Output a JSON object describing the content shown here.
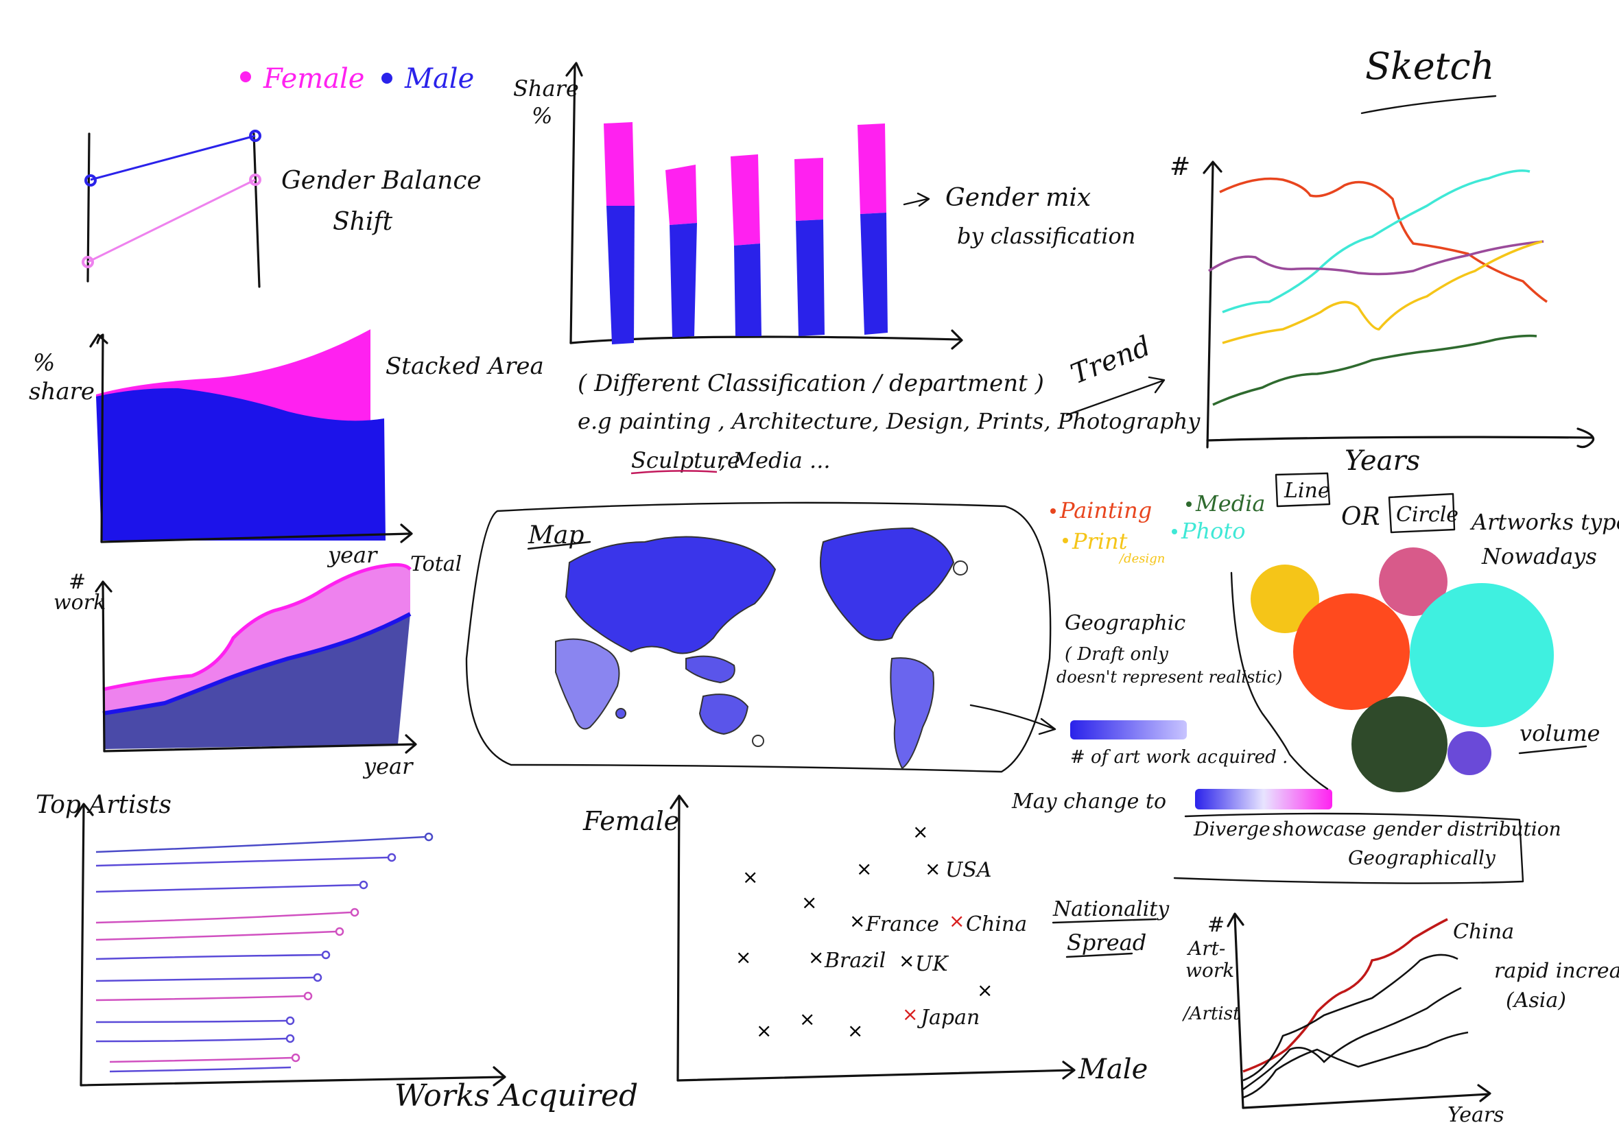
{
  "colors": {
    "female": "#ff21f0",
    "male": "#2a22ea",
    "female_light": "#ee82ee",
    "male_dark": "#4a4aa8",
    "ink": "#111111",
    "red": "#e8451e",
    "cyan": "#3fe8d6",
    "purple": "#9a4a9a",
    "yellow": "#f5c518",
    "green": "#2e6a2e",
    "pink": "#d85a8a",
    "violet": "#6a4ad8",
    "darkgreen": "#2f4a2a"
  },
  "header": {
    "sketch_title": "Sketch"
  },
  "legend": {
    "female": "Female",
    "male": "Male"
  },
  "slope_chart": {
    "label_line1": "Gender Balance",
    "label_line2": "Shift"
  },
  "stacked_area": {
    "ylabel_line1": "%",
    "ylabel_line2": "share",
    "xlabel": "year",
    "label": "Stacked Area"
  },
  "area_total": {
    "ylabel_line1": "#",
    "ylabel_line2": "work",
    "xlabel": "year",
    "total_label": "Total"
  },
  "bar_chart": {
    "ylabel_line1": "Share",
    "ylabel_line2": "%",
    "label_line1": "Gender mix",
    "label_line2": "by classification",
    "note_line1": "( Different Classification / department )",
    "note_line2": "e.g  painting , Architecture, Design, Prints, Photography",
    "note_line3a": "Sculpture",
    "note_line3b": ", Media ..."
  },
  "trend": {
    "arrow_label": "Trend",
    "ylabel": "#",
    "xlabel": "Years"
  },
  "map": {
    "title": "Map",
    "geo_line1": "Geographic",
    "geo_line2": "( Draft only",
    "geo_line3": "doesn't represent realistic)",
    "scale_label": "# of art work acquired .",
    "change_label": "May change  to",
    "diverge_label": "Diverge",
    "showcase_line1": "showcase gender distribution",
    "showcase_line2": "Geographically"
  },
  "artworks_type": {
    "legend_painting": "Painting",
    "legend_media": "Media",
    "legend_print": "Print",
    "legend_print_sub": "/design",
    "legend_photo": "Photo",
    "line_box": "Line",
    "or": "OR",
    "circle_box": "Circle",
    "title_line1": "Artworks type",
    "title_line2": "Nowadays",
    "volume": "volume"
  },
  "top_artists": {
    "title": "Top Artists",
    "xlabel": "Works Acquired"
  },
  "scatter": {
    "ylabel": "Female",
    "xlabel": "Male",
    "labels": {
      "usa": "USA",
      "france": "France",
      "china": "China",
      "brazil": "Brazil",
      "uk": "UK",
      "japan": "Japan"
    },
    "spread_line1": "Nationality",
    "spread_line2": "Spread"
  },
  "artist_trend": {
    "ylabel_line1": "#",
    "ylabel_line2": "Art-",
    "ylabel_line3": "work",
    "ylabel_line4": "/Artist",
    "xlabel": "Years",
    "china": "China",
    "note_line1": "rapid increase",
    "note_line2": "(Asia)"
  }
}
